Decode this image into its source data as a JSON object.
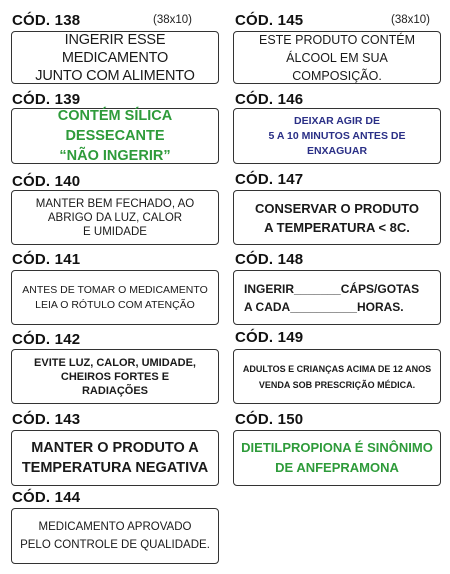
{
  "labels": [
    {
      "code": "CÓD. 138",
      "size": "(38x10)",
      "text": "INGERIR ESSE MEDICAMENTO\nJUNTO COM ALIMENTO",
      "color": "#1a1a1a"
    },
    {
      "code": "CÓD. 139",
      "text": "CONTÉM SÍLICA DESSECANTE\n“NÃO INGERIR”",
      "color": "#2e9b3a"
    },
    {
      "code": "CÓD. 140",
      "text": "MANTER BEM FECHADO, AO\nABRIGO DA LUZ, CALOR\nE UMIDADE",
      "color": "#1a1a1a"
    },
    {
      "code": "CÓD. 141",
      "text": "ANTES DE TOMAR O MEDICAMENTO\nLEIA O RÓTULO COM ATENÇÃO",
      "color": "#1a1a1a"
    },
    {
      "code": "CÓD. 142",
      "text": "EVITE LUZ, CALOR, UMIDADE,\nCHEIROS FORTES E\nRADIAÇÕES",
      "color": "#1a1a1a"
    },
    {
      "code": "CÓD. 143",
      "text": "MANTER O PRODUTO A\nTEMPERATURA NEGATIVA",
      "color": "#1a1a1a"
    },
    {
      "code": "CÓD. 144",
      "text": "MEDICAMENTO APROVADO\nPELO CONTROLE DE QUALIDADE.",
      "color": "#1a1a1a"
    },
    {
      "code": "CÓD. 145",
      "size": "(38x10)",
      "text": "ESTE PRODUTO CONTÉM\nÁLCOOL EM SUA COMPOSIÇÃO.",
      "color": "#1a1a1a"
    },
    {
      "code": "CÓD. 146",
      "text": "DEIXAR AGIR DE\n5 A 10 MINUTOS ANTES DE ENXAGUAR",
      "color": "#2a2f86"
    },
    {
      "code": "CÓD. 147",
      "text": "CONSERVAR O PRODUTO\nA TEMPERATURA < 8C.",
      "color": "#1a1a1a"
    },
    {
      "code": "CÓD. 148",
      "text": "INGERIR_______CÁPS/GOTAS\nA CADA__________HORAS.",
      "color": "#1a1a1a"
    },
    {
      "code": "CÓD. 149",
      "text": "ADULTOS E CRIANÇAS ACIMA DE 12 ANOS\nVENDA SOB PRESCRIÇÃO MÉDICA.",
      "color": "#1a1a1a"
    },
    {
      "code": "CÓD. 150",
      "text": "DIETILPROPIONA É SINÔNIMO\nDE ANFEPRAMONA",
      "color": "#2e9b3a"
    }
  ]
}
